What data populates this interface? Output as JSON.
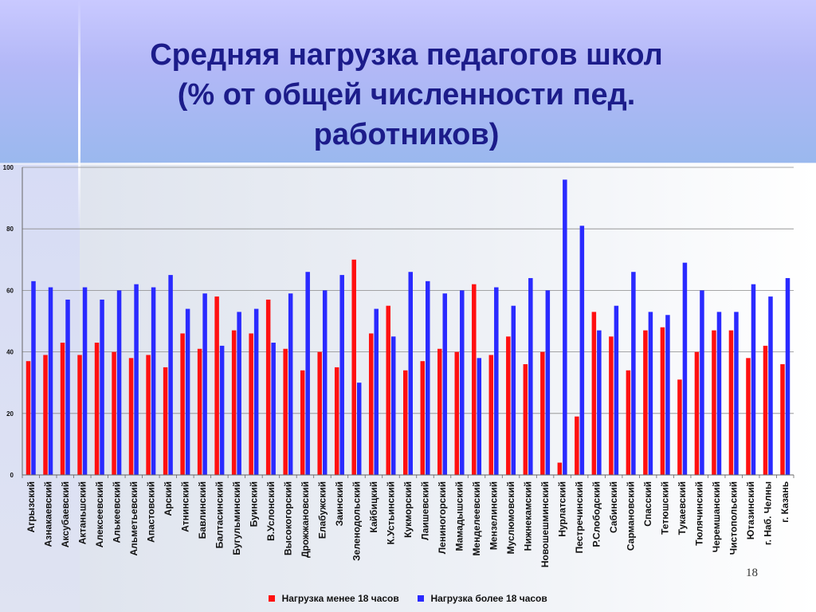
{
  "slide": {
    "title_lines": [
      "Средняя нагрузка педагогов школ",
      "(% от общей численности пед.",
      "работников)"
    ],
    "page_number": "18"
  },
  "chart_data": {
    "type": "bar",
    "title": "",
    "ylim": [
      0,
      100
    ],
    "yticks": [
      0,
      20,
      40,
      60,
      80,
      100
    ],
    "grid": true,
    "legend_position": "bottom",
    "categories": [
      "Агрызский",
      "Азнакаевский",
      "Аксубаевский",
      "Актаньшский",
      "Алексеевский",
      "Алькеевский",
      "Альметьевский",
      "Апастовский",
      "Арский",
      "Атнинский",
      "Бавлинский",
      "Балтасинский",
      "Бугульминский",
      "Буинский",
      "В.Услонский",
      "Высокогорский",
      "Дрожжановский",
      "Елабужский",
      "Заинский",
      "Зеленодольский",
      "Кайбицкий",
      "К.Устьинский",
      "Кукморский",
      "Лаишевский",
      "Лениногорский",
      "Мамадышский",
      "Менделеевский",
      "Мензелинский",
      "Муслюмовский",
      "Нижнекамский",
      "Новошешминский",
      "Нурлатский",
      "Пестречинский",
      "Р.Слободский",
      "Сабинский",
      "Сармановский",
      "Спасский",
      "Тетюшский",
      "Тукаевский",
      "Тюлячинский",
      "Черемшанский",
      "Чистопольский",
      "Ютазинский",
      "г. Наб. Челны",
      "г. Казань"
    ],
    "series": [
      {
        "name": "Нагрузка менее 18 часов",
        "color": "#ff1010",
        "values": [
          37,
          39,
          43,
          39,
          43,
          40,
          38,
          39,
          35,
          46,
          41,
          58,
          47,
          46,
          57,
          41,
          34,
          40,
          35,
          70,
          46,
          55,
          34,
          37,
          41,
          40,
          62,
          39,
          45,
          36,
          40,
          4,
          19,
          53,
          45,
          34,
          47,
          48,
          31,
          40,
          47,
          47,
          38,
          42,
          36
        ]
      },
      {
        "name": "Нагрузка более 18 часов",
        "color": "#2a2aff",
        "values": [
          63,
          61,
          57,
          61,
          57,
          60,
          62,
          61,
          65,
          54,
          59,
          42,
          53,
          54,
          43,
          59,
          66,
          60,
          65,
          30,
          54,
          45,
          66,
          63,
          59,
          60,
          38,
          61,
          55,
          64,
          60,
          96,
          81,
          47,
          55,
          66,
          53,
          52,
          69,
          60,
          53,
          53,
          62,
          58,
          64
        ]
      }
    ]
  }
}
